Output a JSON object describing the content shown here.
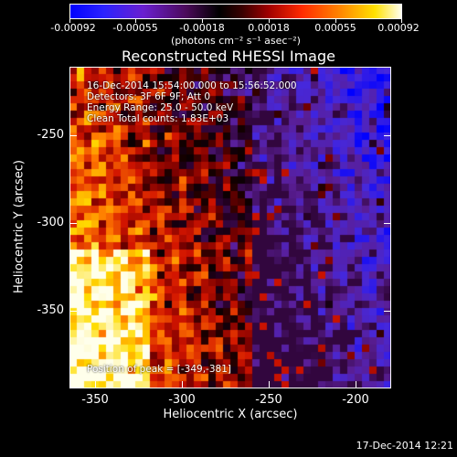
{
  "colorbar": {
    "ticks": [
      "-0.00092",
      "-0.00055",
      "-0.00018",
      "0.00018",
      "0.00055",
      "0.00092"
    ],
    "units": "(photons cm⁻² s⁻¹ asec⁻²)"
  },
  "title": "Reconstructed RHESSI Image",
  "info": {
    "time": "16-Dec-2014 15:54:00.000 to 15:56:52.000",
    "detectors": "Detectors: 3F 6F 9F; Att 0",
    "energy": "Energy Range: 25.0 - 50.0 keV",
    "clean": "Clean     Total counts: 1.83E+03",
    "peak": "Position of peak = [-349,-381]"
  },
  "axes": {
    "xlabel": "Heliocentric X (arcsec)",
    "ylabel": "Heliocentric Y (arcsec)",
    "xticks": [
      "-350",
      "-300",
      "-250",
      "-200"
    ],
    "yticks": [
      "-250",
      "-300",
      "-350"
    ]
  },
  "footer": {
    "timestamp": "17-Dec-2014 12:21"
  },
  "colors": {
    "background": "#000000",
    "foreground": "#ffffff",
    "colormap": [
      "#0000ff",
      "#6a1fd0",
      "#000000",
      "#a10000",
      "#ff8a00",
      "#fffff0"
    ]
  }
}
